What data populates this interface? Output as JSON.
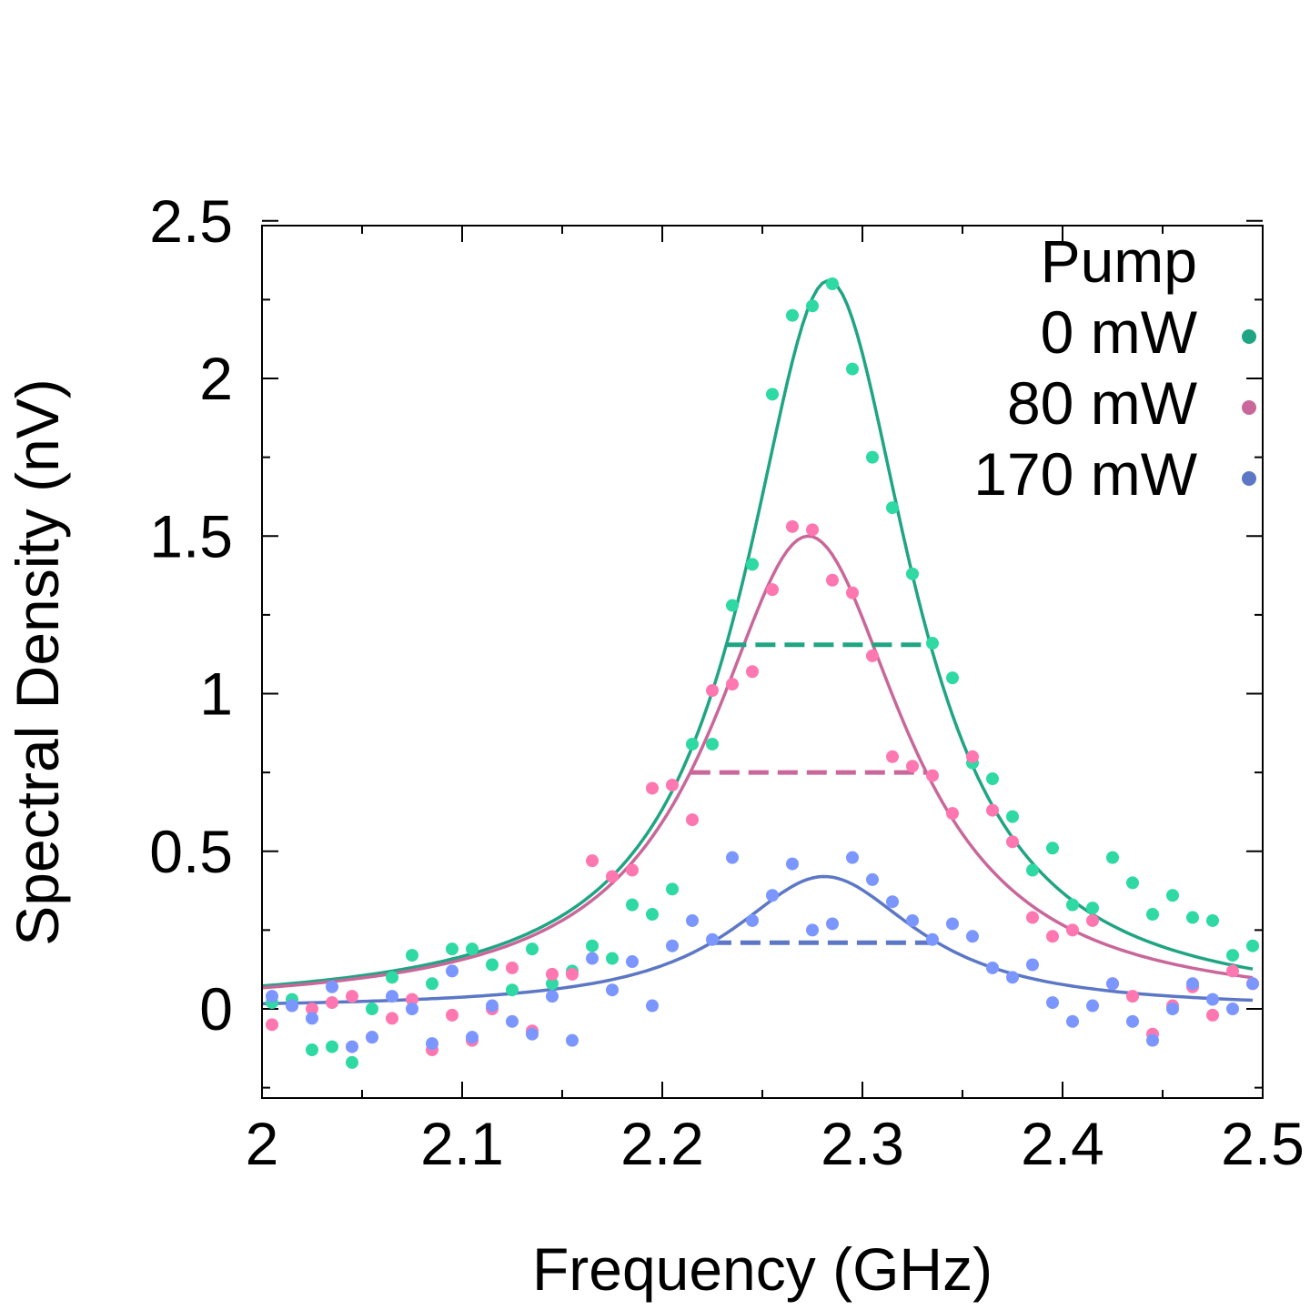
{
  "chart_data": {
    "type": "scatter",
    "title": "",
    "xlabel": "Frequency (GHz)",
    "ylabel": "Spectral Density (nV)",
    "xlim": [
      2.0,
      2.5
    ],
    "ylim": [
      -0.28,
      2.5
    ],
    "xticks": [
      2.0,
      2.1,
      2.2,
      2.3,
      2.4,
      2.5
    ],
    "xtick_labels": [
      "2",
      "2.1",
      "2.2",
      "2.3",
      "2.4",
      "2.5"
    ],
    "yticks": [
      0,
      0.5,
      1.0,
      1.5,
      2.0,
      2.5
    ],
    "ytick_labels": [
      "0",
      "0.5",
      "1",
      "1.5",
      "2",
      "2.5"
    ],
    "grid": false,
    "legend": {
      "title": "Pump",
      "placement": "top-right"
    },
    "series": [
      {
        "name": "0 mW",
        "point_color": "#2ed9a3",
        "line_color": "#1fa583",
        "x": [
          2.005,
          2.015,
          2.025,
          2.035,
          2.045,
          2.055,
          2.065,
          2.075,
          2.085,
          2.095,
          2.105,
          2.115,
          2.125,
          2.135,
          2.145,
          2.155,
          2.165,
          2.175,
          2.185,
          2.195,
          2.205,
          2.215,
          2.225,
          2.235,
          2.245,
          2.255,
          2.265,
          2.275,
          2.285,
          2.295,
          2.305,
          2.315,
          2.325,
          2.335,
          2.345,
          2.355,
          2.365,
          2.375,
          2.385,
          2.395,
          2.405,
          2.415,
          2.425,
          2.435,
          2.445,
          2.455,
          2.465,
          2.475,
          2.485,
          2.495
        ],
        "y": [
          0.02,
          0.03,
          -0.13,
          -0.12,
          -0.17,
          0.0,
          0.1,
          0.17,
          0.08,
          0.19,
          0.19,
          0.14,
          0.06,
          0.19,
          0.08,
          0.12,
          0.2,
          0.16,
          0.33,
          0.3,
          0.38,
          0.84,
          0.84,
          1.28,
          1.41,
          1.95,
          2.2,
          2.23,
          2.3,
          2.03,
          1.75,
          1.59,
          1.38,
          1.16,
          1.05,
          0.78,
          0.73,
          0.61,
          0.44,
          0.51,
          0.33,
          0.32,
          0.48,
          0.4,
          0.3,
          0.36,
          0.29,
          0.28,
          0.17,
          0.2
        ],
        "fit": {
          "peak": 2.31,
          "center": 2.283,
          "fwhm": 0.102,
          "half_max": 1.155
        }
      },
      {
        "name": "80 mW",
        "point_color": "#ff77b0",
        "line_color": "#c9679a",
        "x": [
          2.005,
          2.015,
          2.025,
          2.035,
          2.045,
          2.055,
          2.065,
          2.075,
          2.085,
          2.095,
          2.105,
          2.115,
          2.125,
          2.135,
          2.145,
          2.155,
          2.165,
          2.175,
          2.185,
          2.195,
          2.205,
          2.215,
          2.225,
          2.235,
          2.245,
          2.255,
          2.265,
          2.275,
          2.285,
          2.295,
          2.305,
          2.315,
          2.325,
          2.335,
          2.345,
          2.355,
          2.365,
          2.375,
          2.385,
          2.395,
          2.405,
          2.415,
          2.425,
          2.435,
          2.445,
          2.455,
          2.465,
          2.475,
          2.485,
          2.495
        ],
        "y": [
          -0.05,
          0.01,
          0.0,
          0.02,
          0.04,
          -0.09,
          -0.03,
          0.03,
          -0.13,
          -0.02,
          -0.1,
          0.0,
          0.13,
          -0.07,
          0.11,
          0.11,
          0.47,
          0.42,
          0.44,
          0.7,
          0.71,
          0.6,
          1.01,
          1.03,
          1.07,
          1.33,
          1.53,
          1.52,
          1.36,
          1.32,
          1.12,
          0.8,
          0.77,
          0.74,
          0.62,
          0.8,
          0.63,
          0.53,
          0.29,
          0.23,
          0.25,
          0.28,
          0.08,
          0.04,
          -0.08,
          0.01,
          0.07,
          -0.02,
          0.12,
          0.08
        ],
        "fit": {
          "peak": 1.5,
          "center": 2.273,
          "fwhm": 0.118,
          "half_max": 0.75
        }
      },
      {
        "name": "170 mW",
        "point_color": "#7b96ff",
        "line_color": "#5b77c6",
        "x": [
          2.005,
          2.015,
          2.025,
          2.035,
          2.045,
          2.055,
          2.065,
          2.075,
          2.085,
          2.095,
          2.105,
          2.115,
          2.125,
          2.135,
          2.145,
          2.155,
          2.165,
          2.175,
          2.185,
          2.195,
          2.205,
          2.215,
          2.225,
          2.235,
          2.245,
          2.255,
          2.265,
          2.275,
          2.285,
          2.295,
          2.305,
          2.315,
          2.325,
          2.335,
          2.345,
          2.355,
          2.365,
          2.375,
          2.385,
          2.395,
          2.405,
          2.415,
          2.425,
          2.435,
          2.445,
          2.455,
          2.465,
          2.475,
          2.485,
          2.495
        ],
        "y": [
          0.04,
          0.01,
          -0.03,
          0.07,
          -0.12,
          -0.09,
          0.04,
          0.0,
          -0.11,
          0.12,
          -0.09,
          0.01,
          -0.04,
          -0.08,
          0.04,
          -0.1,
          0.16,
          0.06,
          0.15,
          0.01,
          0.2,
          0.28,
          0.22,
          0.48,
          0.28,
          0.36,
          0.46,
          0.25,
          0.27,
          0.48,
          0.41,
          0.34,
          0.28,
          0.22,
          0.27,
          0.23,
          0.13,
          0.1,
          0.14,
          0.02,
          -0.04,
          0.01,
          0.08,
          -0.04,
          -0.1,
          0.0,
          0.08,
          0.03,
          0.0,
          0.08
        ],
        "fit": {
          "peak": 0.42,
          "center": 2.281,
          "fwhm": 0.113,
          "half_max": 0.21
        }
      }
    ]
  }
}
